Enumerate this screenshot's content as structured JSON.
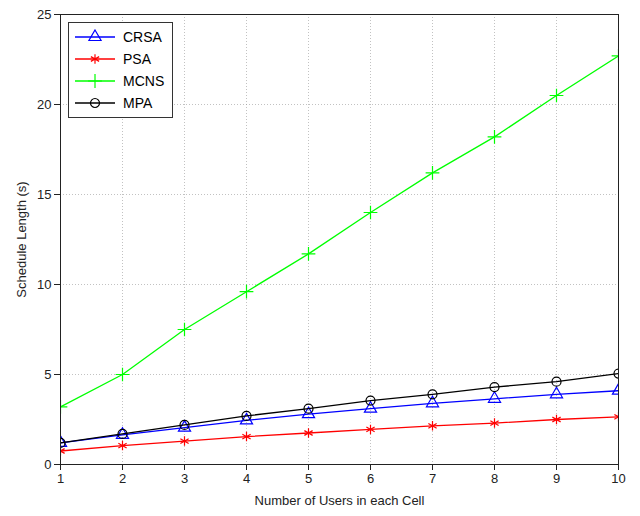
{
  "chart_data": {
    "type": "line",
    "x_label": "Number of Users in each Cell",
    "y_label": "Schedule Length (s)",
    "x": [
      1,
      2,
      3,
      4,
      5,
      6,
      7,
      8,
      9,
      10
    ],
    "xlim": [
      1,
      10
    ],
    "xticks": [
      1,
      2,
      3,
      4,
      5,
      6,
      7,
      8,
      9,
      10
    ],
    "ylim": [
      0,
      25
    ],
    "yticks": [
      0,
      5,
      10,
      15,
      20,
      25
    ],
    "grid": true,
    "legend": "upper left",
    "series": [
      {
        "name": "CRSA",
        "color": "#0000ff",
        "marker": "triangle",
        "values": [
          1.2,
          1.65,
          2.05,
          2.45,
          2.8,
          3.1,
          3.4,
          3.65,
          3.9,
          4.1
        ]
      },
      {
        "name": "PSA",
        "color": "#ff0000",
        "marker": "asterisk",
        "values": [
          0.75,
          1.05,
          1.3,
          1.55,
          1.75,
          1.95,
          2.15,
          2.3,
          2.5,
          2.65
        ]
      },
      {
        "name": "MCNS",
        "color": "#00ff00",
        "marker": "plus",
        "values": [
          3.2,
          5.0,
          7.5,
          9.6,
          11.7,
          14.0,
          16.2,
          18.2,
          20.5,
          22.7
        ]
      },
      {
        "name": "MPA",
        "color": "#000000",
        "marker": "circle",
        "values": [
          1.2,
          1.7,
          2.2,
          2.7,
          3.1,
          3.55,
          3.9,
          4.3,
          4.6,
          5.05
        ]
      }
    ]
  }
}
